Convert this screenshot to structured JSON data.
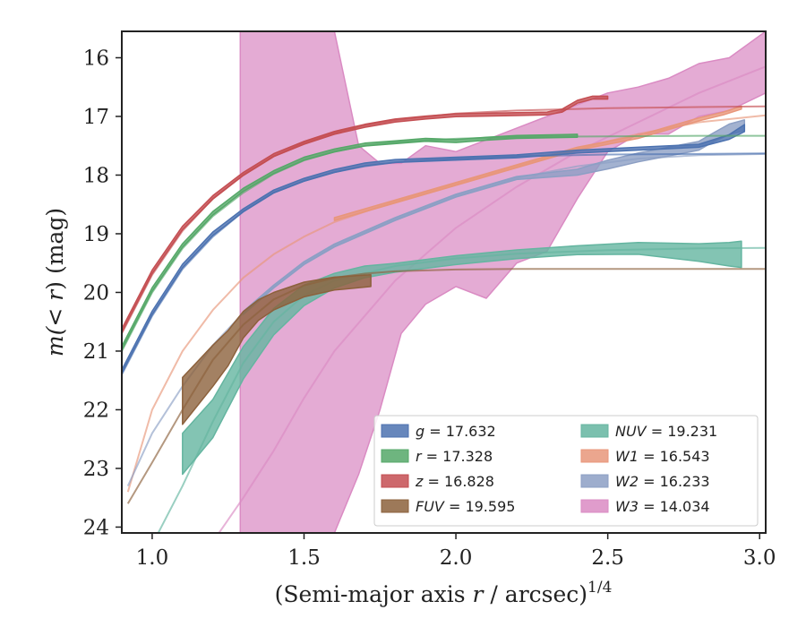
{
  "chart_data": {
    "type": "line",
    "title": "",
    "xlabel_main": "(Semi-major axis ",
    "xlabel_var": "r",
    "xlabel_unit": " / arcsec)",
    "xlabel_exp": "1/4",
    "ylabel_pre": "m(< ",
    "ylabel_var": "r",
    "ylabel_post": ") (mag)",
    "xlim": [
      0.9,
      3.02
    ],
    "ylim": [
      24.1,
      15.55
    ],
    "y_inverted": true,
    "xticks": [
      1.0,
      1.5,
      2.0,
      2.5,
      3.0
    ],
    "xtick_labels": [
      "1.0",
      "1.5",
      "2.0",
      "2.5",
      "3.0"
    ],
    "yticks": [
      16,
      17,
      18,
      19,
      20,
      21,
      22,
      23,
      24
    ],
    "ytick_labels": [
      "16",
      "17",
      "18",
      "19",
      "20",
      "21",
      "22",
      "23",
      "24"
    ],
    "grid": false,
    "legend_placement": "bottom-right",
    "series": [
      {
        "name_var": "g",
        "name_val": " = 17.632",
        "color": "#4c72b0",
        "model_x": [
          0.9,
          1.0,
          1.1,
          1.2,
          1.3,
          1.4,
          1.5,
          1.6,
          1.7,
          1.8,
          2.0,
          2.2,
          2.5,
          2.8,
          3.02
        ],
        "model_y": [
          21.4,
          20.4,
          19.6,
          19.05,
          18.62,
          18.3,
          18.1,
          17.95,
          17.85,
          17.78,
          17.72,
          17.68,
          17.65,
          17.64,
          17.63
        ],
        "obs_x": [
          0.9,
          1.0,
          1.1,
          1.2,
          1.3,
          1.4,
          1.5,
          1.6,
          1.7,
          1.8,
          2.0,
          2.2,
          2.4,
          2.6,
          2.8,
          2.9,
          2.95
        ],
        "obs_y": [
          21.35,
          20.35,
          19.55,
          19.0,
          18.6,
          18.28,
          18.08,
          17.93,
          17.82,
          17.76,
          17.72,
          17.68,
          17.6,
          17.55,
          17.5,
          17.35,
          17.2
        ],
        "obs_width": [
          0.06,
          0.06,
          0.06,
          0.06,
          0.05,
          0.05,
          0.05,
          0.05,
          0.05,
          0.05,
          0.05,
          0.05,
          0.05,
          0.05,
          0.05,
          0.08,
          0.12
        ]
      },
      {
        "name_var": "r",
        "name_val": " = 17.328",
        "color": "#55a868",
        "model_x": [
          0.9,
          1.0,
          1.1,
          1.2,
          1.3,
          1.4,
          1.5,
          1.6,
          1.7,
          1.8,
          2.0,
          2.2,
          2.5,
          2.8,
          3.02
        ],
        "model_y": [
          21.0,
          20.0,
          19.25,
          18.7,
          18.3,
          17.98,
          17.75,
          17.6,
          17.5,
          17.44,
          17.38,
          17.35,
          17.34,
          17.33,
          17.33
        ],
        "obs_x": [
          0.9,
          1.0,
          1.1,
          1.2,
          1.3,
          1.4,
          1.5,
          1.6,
          1.7,
          1.8,
          1.9,
          2.0,
          2.1,
          2.2,
          2.4
        ],
        "obs_y": [
          20.95,
          19.95,
          19.2,
          18.65,
          18.25,
          17.95,
          17.72,
          17.58,
          17.48,
          17.44,
          17.4,
          17.42,
          17.38,
          17.35,
          17.33
        ],
        "obs_width": [
          0.06,
          0.06,
          0.06,
          0.06,
          0.05,
          0.05,
          0.05,
          0.05,
          0.05,
          0.05,
          0.05,
          0.05,
          0.05,
          0.05,
          0.05
        ]
      },
      {
        "name_var": "z",
        "name_val": " = 16.828",
        "color": "#c44e52",
        "model_x": [
          0.9,
          1.0,
          1.1,
          1.2,
          1.3,
          1.4,
          1.5,
          1.6,
          1.7,
          1.8,
          2.0,
          2.2,
          2.5,
          2.8,
          3.02
        ],
        "model_y": [
          20.7,
          19.7,
          18.95,
          18.4,
          18.0,
          17.68,
          17.45,
          17.28,
          17.15,
          17.06,
          16.95,
          16.9,
          16.86,
          16.84,
          16.83
        ],
        "obs_x": [
          0.9,
          1.0,
          1.1,
          1.2,
          1.3,
          1.4,
          1.5,
          1.6,
          1.7,
          1.8,
          1.9,
          2.0,
          2.1,
          2.2,
          2.3,
          2.35,
          2.4,
          2.45,
          2.5
        ],
        "obs_y": [
          20.65,
          19.65,
          18.9,
          18.38,
          17.98,
          17.66,
          17.45,
          17.28,
          17.16,
          17.07,
          17.02,
          16.98,
          16.97,
          16.96,
          16.95,
          16.9,
          16.75,
          16.68,
          16.68
        ],
        "obs_width": [
          0.06,
          0.06,
          0.06,
          0.06,
          0.05,
          0.05,
          0.05,
          0.05,
          0.05,
          0.05,
          0.05,
          0.05,
          0.05,
          0.05,
          0.05,
          0.05,
          0.05,
          0.05,
          0.05
        ]
      },
      {
        "name_var": "FUV",
        "name_val": " = 19.595",
        "color": "#8c613c",
        "model_x": [
          0.92,
          1.0,
          1.1,
          1.2,
          1.3,
          1.4,
          1.5,
          1.6,
          1.7,
          1.8,
          2.0,
          2.2,
          2.5,
          2.8,
          3.02
        ],
        "model_y": [
          23.6,
          22.9,
          22.0,
          21.15,
          20.55,
          20.12,
          19.88,
          19.75,
          19.68,
          19.64,
          19.61,
          19.6,
          19.6,
          19.6,
          19.6
        ],
        "obs_x": [
          1.1,
          1.15,
          1.2,
          1.25,
          1.3,
          1.35,
          1.4,
          1.5,
          1.6,
          1.72
        ],
        "obs_y": [
          21.85,
          21.55,
          21.25,
          20.95,
          20.55,
          20.3,
          20.15,
          19.95,
          19.85,
          19.8
        ],
        "obs_width": [
          0.8,
          0.75,
          0.7,
          0.6,
          0.45,
          0.35,
          0.3,
          0.25,
          0.22,
          0.2
        ]
      },
      {
        "name_var": "NUV",
        "name_val": " = 19.231",
        "color": "#64b5a0",
        "model_x": [
          1.02,
          1.1,
          1.2,
          1.3,
          1.4,
          1.5,
          1.6,
          1.8,
          2.0,
          2.2,
          2.5,
          2.8,
          3.02
        ],
        "model_y": [
          24.1,
          23.3,
          22.2,
          21.2,
          20.5,
          20.05,
          19.8,
          19.55,
          19.42,
          19.34,
          19.28,
          19.25,
          19.24
        ],
        "obs_x": [
          1.1,
          1.2,
          1.3,
          1.4,
          1.5,
          1.6,
          1.7,
          1.8,
          2.0,
          2.2,
          2.4,
          2.6,
          2.8,
          2.9,
          2.94
        ],
        "obs_y": [
          22.75,
          22.15,
          21.2,
          20.5,
          20.05,
          19.8,
          19.65,
          19.58,
          19.45,
          19.35,
          19.28,
          19.25,
          19.32,
          19.35,
          19.35
        ],
        "obs_width": [
          0.7,
          0.65,
          0.55,
          0.45,
          0.35,
          0.25,
          0.2,
          0.15,
          0.15,
          0.15,
          0.15,
          0.2,
          0.3,
          0.4,
          0.45
        ]
      },
      {
        "name_var": "W1",
        "name_val": " = 16.543",
        "color": "#e8967a",
        "model_x": [
          0.92,
          1.0,
          1.1,
          1.2,
          1.3,
          1.4,
          1.5,
          1.6,
          1.8,
          2.0,
          2.2,
          2.4,
          2.6,
          2.8,
          3.02
        ],
        "model_y": [
          23.4,
          22.0,
          21.0,
          20.3,
          19.75,
          19.35,
          19.05,
          18.8,
          18.45,
          18.15,
          17.85,
          17.55,
          17.3,
          17.1,
          16.98
        ],
        "obs_x": [
          1.6,
          1.8,
          2.0,
          2.2,
          2.4,
          2.5,
          2.6,
          2.7,
          2.8,
          2.88,
          2.94
        ],
        "obs_y": [
          18.75,
          18.45,
          18.15,
          17.85,
          17.55,
          17.45,
          17.35,
          17.2,
          17.05,
          16.95,
          16.85
        ],
        "obs_width": [
          0.05,
          0.05,
          0.05,
          0.05,
          0.05,
          0.05,
          0.05,
          0.05,
          0.05,
          0.05,
          0.05
        ]
      },
      {
        "name_var": "W2",
        "name_val": " = 16.233",
        "color": "#8c9fc4",
        "model_x": [
          0.92,
          1.0,
          1.1,
          1.2,
          1.3,
          1.4,
          1.5,
          1.6,
          1.8,
          2.0,
          2.2,
          2.4,
          2.6,
          2.8,
          3.02
        ],
        "model_y": [
          23.3,
          22.4,
          21.6,
          20.9,
          20.35,
          19.9,
          19.5,
          19.2,
          18.75,
          18.35,
          18.05,
          17.85,
          17.72,
          17.66,
          17.64
        ],
        "obs_x": [
          1.3,
          1.4,
          1.5,
          1.6,
          1.8,
          2.0,
          2.2,
          2.4,
          2.5,
          2.6,
          2.7,
          2.8,
          2.85,
          2.9,
          2.95
        ],
        "obs_y": [
          20.35,
          19.9,
          19.5,
          19.2,
          18.75,
          18.35,
          18.05,
          17.95,
          17.82,
          17.7,
          17.6,
          17.5,
          17.35,
          17.22,
          17.15
        ],
        "obs_width": [
          0.05,
          0.05,
          0.05,
          0.05,
          0.05,
          0.05,
          0.05,
          0.1,
          0.15,
          0.15,
          0.15,
          0.15,
          0.15,
          0.18,
          0.18
        ]
      },
      {
        "name_var": "W3",
        "name_val": " = 14.034",
        "color": "#da8bc3",
        "model_x": [
          1.22,
          1.3,
          1.4,
          1.5,
          1.6,
          1.8,
          2.0,
          2.2,
          2.4,
          2.6,
          2.8,
          3.02
        ],
        "model_y": [
          24.1,
          23.5,
          22.7,
          21.8,
          21.0,
          19.8,
          18.9,
          18.2,
          17.6,
          17.1,
          16.6,
          16.15
        ],
        "obs_x": [
          1.29,
          1.4,
          1.5,
          1.6,
          1.68,
          1.75,
          1.82,
          1.9,
          2.0,
          2.1,
          2.2,
          2.3,
          2.4,
          2.5,
          2.6,
          2.7,
          2.8,
          2.9,
          3.02
        ],
        "obs_y": [
          19.8,
          20.0,
          20.0,
          20.0,
          19.5,
          19.5,
          18.5,
          18.0,
          18.4,
          18.6,
          18.3,
          18.2,
          17.6,
          17.1,
          16.9,
          17.0,
          16.85,
          16.7,
          16.15
        ],
        "obs_upper": [
          15.55,
          15.55,
          15.55,
          15.55,
          17.5,
          17.8,
          17.8,
          17.5,
          17.6,
          17.4,
          17.2,
          17.0,
          16.8,
          16.6,
          16.5,
          16.35,
          16.1,
          16.0,
          15.55
        ],
        "obs_lower": [
          24.1,
          24.1,
          24.1,
          24.1,
          23.1,
          22.0,
          20.7,
          20.2,
          19.9,
          20.1,
          19.5,
          19.3,
          18.4,
          17.6,
          17.3,
          17.3,
          17.0,
          16.9,
          16.6
        ]
      }
    ]
  }
}
